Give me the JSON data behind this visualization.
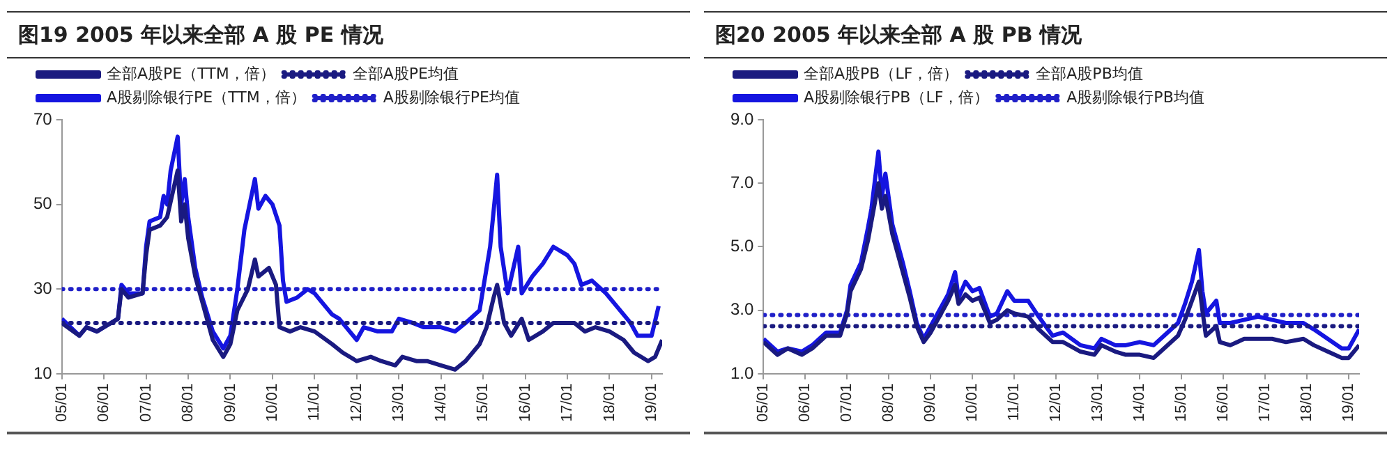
{
  "chart_data": [
    {
      "type": "line",
      "title": "图19 2005 年以来全部 A 股 PE 情况",
      "legend": "top left",
      "grid": false,
      "line_style": "solid",
      "xlim": [
        "2005-01",
        "2019-04"
      ],
      "xticks": [
        {
          "value": "2005-01",
          "label": "05/01"
        },
        {
          "value": "2006-01",
          "label": "06/01"
        },
        {
          "value": "2007-01",
          "label": "07/01"
        },
        {
          "value": "2008-01",
          "label": "08/01"
        },
        {
          "value": "2009-01",
          "label": "09/01"
        },
        {
          "value": "2010-01",
          "label": "10/01"
        },
        {
          "value": "2011-01",
          "label": "11/01"
        },
        {
          "value": "2012-01",
          "label": "12/01"
        },
        {
          "value": "2013-01",
          "label": "13/01"
        },
        {
          "value": "2014-01",
          "label": "14/01"
        },
        {
          "value": "2015-01",
          "label": "15/01"
        },
        {
          "value": "2016-01",
          "label": "16/01"
        },
        {
          "value": "2017-01",
          "label": "17/01"
        },
        {
          "value": "2018-01",
          "label": "18/01"
        },
        {
          "value": "2019-01",
          "label": "19/01"
        }
      ],
      "ylim": [
        10,
        70
      ],
      "yticks": [
        10,
        30,
        50,
        70
      ],
      "series": [
        {
          "name": "全部A股PE（TTM，倍）",
          "color": "#1a1a80",
          "x": [
            "2005-01",
            "2005-06",
            "2005-08",
            "2005-11",
            "2006-01",
            "2006-05",
            "2006-06",
            "2006-08",
            "2006-12",
            "2007-01",
            "2007-02",
            "2007-05",
            "2007-07",
            "2007-10",
            "2007-11",
            "2007-12",
            "2008-01",
            "2008-03",
            "2008-05",
            "2008-08",
            "2008-11",
            "2009-01",
            "2009-03",
            "2009-06",
            "2009-08",
            "2009-09",
            "2009-12",
            "2010-02",
            "2010-03",
            "2010-06",
            "2010-09",
            "2011-01",
            "2011-06",
            "2011-09",
            "2012-01",
            "2012-05",
            "2012-08",
            "2012-12",
            "2013-02",
            "2013-06",
            "2013-09",
            "2014-01",
            "2014-05",
            "2014-08",
            "2014-12",
            "2015-02",
            "2015-04",
            "2015-05",
            "2015-07",
            "2015-09",
            "2015-12",
            "2016-02",
            "2016-06",
            "2016-09",
            "2017-01",
            "2017-03",
            "2017-06",
            "2017-09",
            "2018-01",
            "2018-05",
            "2018-08",
            "2018-12",
            "2019-02",
            "2019-04"
          ],
          "values": [
            22,
            19,
            21,
            20,
            21,
            23,
            30,
            28,
            29,
            38,
            44,
            45,
            47,
            58,
            46,
            50,
            42,
            33,
            27,
            18,
            14,
            17,
            25,
            30,
            37,
            33,
            35,
            31,
            21,
            20,
            21,
            20,
            17,
            15,
            13,
            14,
            13,
            12,
            14,
            13,
            13,
            12,
            11,
            13,
            17,
            21,
            28,
            31,
            22,
            19,
            23,
            18,
            20,
            22,
            22,
            22,
            20,
            21,
            20,
            18,
            15,
            13,
            14,
            18
          ]
        },
        {
          "name": "A股剔除银行PE（TTM，倍）",
          "color": "#1515e0",
          "x": [
            "2005-01",
            "2005-06",
            "2005-08",
            "2005-11",
            "2006-01",
            "2006-05",
            "2006-06",
            "2006-08",
            "2006-12",
            "2007-01",
            "2007-02",
            "2007-05",
            "2007-06",
            "2007-07",
            "2007-08",
            "2007-10",
            "2007-11",
            "2007-12",
            "2008-01",
            "2008-03",
            "2008-05",
            "2008-08",
            "2008-11",
            "2009-01",
            "2009-03",
            "2009-05",
            "2009-08",
            "2009-09",
            "2009-11",
            "2010-01",
            "2010-03",
            "2010-04",
            "2010-05",
            "2010-08",
            "2010-11",
            "2011-01",
            "2011-03",
            "2011-06",
            "2011-08",
            "2012-01",
            "2012-03",
            "2012-07",
            "2012-11",
            "2013-01",
            "2013-05",
            "2013-08",
            "2014-01",
            "2014-05",
            "2014-08",
            "2014-12",
            "2015-01",
            "2015-03",
            "2015-05",
            "2015-06",
            "2015-08",
            "2015-11",
            "2015-12",
            "2016-03",
            "2016-06",
            "2016-09",
            "2017-01",
            "2017-03",
            "2017-05",
            "2017-08",
            "2017-12",
            "2018-03",
            "2018-07",
            "2018-09",
            "2019-01",
            "2019-03"
          ],
          "values": [
            23,
            19,
            21,
            20,
            21,
            23,
            31,
            29,
            29,
            40,
            46,
            47,
            52,
            50,
            58,
            66,
            50,
            56,
            47,
            35,
            28,
            20,
            16,
            19,
            30,
            44,
            56,
            49,
            52,
            50,
            45,
            32,
            27,
            28,
            30,
            29,
            27,
            24,
            23,
            18,
            21,
            20,
            20,
            23,
            22,
            21,
            21,
            20,
            22,
            25,
            30,
            40,
            57,
            40,
            29,
            40,
            29,
            33,
            36,
            40,
            38,
            36,
            31,
            32,
            29,
            26,
            22,
            19,
            19,
            26
          ]
        }
      ],
      "ref_lines": [
        {
          "axis": "y",
          "value": 22,
          "label": "全部A股PE均值",
          "color": "#1a1a80",
          "line_style": "dotted"
        },
        {
          "axis": "y",
          "value": 30,
          "label": "A股剔除银行PE均值",
          "color": "#2020c8",
          "line_style": "dotted"
        }
      ]
    },
    {
      "type": "line",
      "title": "图20 2005 年以来全部 A 股 PB 情况",
      "legend": "top left",
      "grid": false,
      "line_style": "solid",
      "xlim": [
        "2005-01",
        "2019-04"
      ],
      "xticks": [
        {
          "value": "2005-01",
          "label": "05/01"
        },
        {
          "value": "2006-01",
          "label": "06/01"
        },
        {
          "value": "2007-01",
          "label": "07/01"
        },
        {
          "value": "2008-01",
          "label": "08/01"
        },
        {
          "value": "2009-01",
          "label": "09/01"
        },
        {
          "value": "2010-01",
          "label": "10/01"
        },
        {
          "value": "2011-01",
          "label": "11/01"
        },
        {
          "value": "2012-01",
          "label": "12/01"
        },
        {
          "value": "2013-01",
          "label": "13/01"
        },
        {
          "value": "2014-01",
          "label": "14/01"
        },
        {
          "value": "2015-01",
          "label": "15/01"
        },
        {
          "value": "2016-01",
          "label": "16/01"
        },
        {
          "value": "2017-01",
          "label": "17/01"
        },
        {
          "value": "2018-01",
          "label": "18/01"
        },
        {
          "value": "2019-01",
          "label": "19/01"
        }
      ],
      "ylim": [
        1,
        9
      ],
      "yticks": [
        {
          "value": 1,
          "label": "1.0"
        },
        {
          "value": 3,
          "label": "3.0"
        },
        {
          "value": 5,
          "label": "5.0"
        },
        {
          "value": 7,
          "label": "7.0"
        },
        {
          "value": 9,
          "label": "9.0"
        }
      ],
      "x": [
        "2005-01",
        "2005-05",
        "2005-08",
        "2005-12",
        "2006-03",
        "2006-07",
        "2006-11",
        "2007-01",
        "2007-02",
        "2007-05",
        "2007-07",
        "2007-08",
        "2007-10",
        "2007-11",
        "2007-12",
        "2008-02",
        "2008-05",
        "2008-07",
        "2008-09",
        "2008-11",
        "2009-01",
        "2009-03",
        "2009-06",
        "2009-08",
        "2009-09",
        "2009-11",
        "2010-01",
        "2010-03",
        "2010-06",
        "2010-08",
        "2010-11",
        "2011-01",
        "2011-05",
        "2011-08",
        "2011-12",
        "2012-03",
        "2012-08",
        "2012-12",
        "2013-02",
        "2013-06",
        "2013-09",
        "2014-01",
        "2014-05",
        "2014-08",
        "2014-12",
        "2015-02",
        "2015-04",
        "2015-06",
        "2015-07",
        "2015-08",
        "2015-11",
        "2015-12",
        "2016-03",
        "2016-07",
        "2016-11",
        "2017-03",
        "2017-07",
        "2017-12",
        "2018-03",
        "2018-07",
        "2018-11",
        "2019-01",
        "2019-04"
      ],
      "series": [
        {
          "name": "全部A股PB（LF，倍）",
          "color": "#1a1a80",
          "values": [
            2.0,
            1.6,
            1.8,
            1.6,
            1.8,
            2.2,
            2.2,
            2.9,
            3.6,
            4.3,
            5.2,
            5.8,
            7.0,
            6.2,
            6.6,
            5.4,
            4.2,
            3.4,
            2.5,
            2.0,
            2.3,
            2.7,
            3.3,
            3.8,
            3.2,
            3.5,
            3.3,
            3.4,
            2.6,
            2.7,
            3.0,
            2.9,
            2.8,
            2.4,
            2.0,
            2.0,
            1.7,
            1.6,
            1.9,
            1.7,
            1.6,
            1.6,
            1.5,
            1.8,
            2.2,
            2.7,
            3.3,
            3.9,
            3.0,
            2.2,
            2.5,
            2.0,
            1.9,
            2.1,
            2.1,
            2.1,
            2.0,
            2.1,
            1.9,
            1.7,
            1.5,
            1.5,
            1.9
          ]
        },
        {
          "name": "A股剔除银行PB（LF，倍）",
          "color": "#1515e0",
          "values": [
            2.1,
            1.7,
            1.8,
            1.7,
            1.9,
            2.3,
            2.3,
            3.0,
            3.8,
            4.5,
            5.6,
            6.2,
            8.0,
            6.6,
            7.3,
            5.7,
            4.5,
            3.6,
            2.6,
            2.1,
            2.5,
            2.9,
            3.5,
            4.2,
            3.4,
            3.9,
            3.6,
            3.7,
            2.8,
            2.9,
            3.6,
            3.3,
            3.3,
            2.8,
            2.2,
            2.3,
            1.9,
            1.8,
            2.1,
            1.9,
            1.9,
            2.0,
            1.9,
            2.2,
            2.6,
            3.2,
            3.9,
            4.9,
            3.6,
            2.9,
            3.3,
            2.6,
            2.6,
            2.7,
            2.8,
            2.7,
            2.6,
            2.6,
            2.4,
            2.1,
            1.8,
            1.8,
            2.4
          ]
        }
      ],
      "ref_lines": [
        {
          "axis": "y",
          "value": 2.5,
          "label": "全部A股PB均值",
          "color": "#1a1a80",
          "line_style": "dotted"
        },
        {
          "axis": "y",
          "value": 2.85,
          "label": "A股剔除银行PB均值",
          "color": "#2020c8",
          "line_style": "dotted"
        }
      ]
    }
  ]
}
